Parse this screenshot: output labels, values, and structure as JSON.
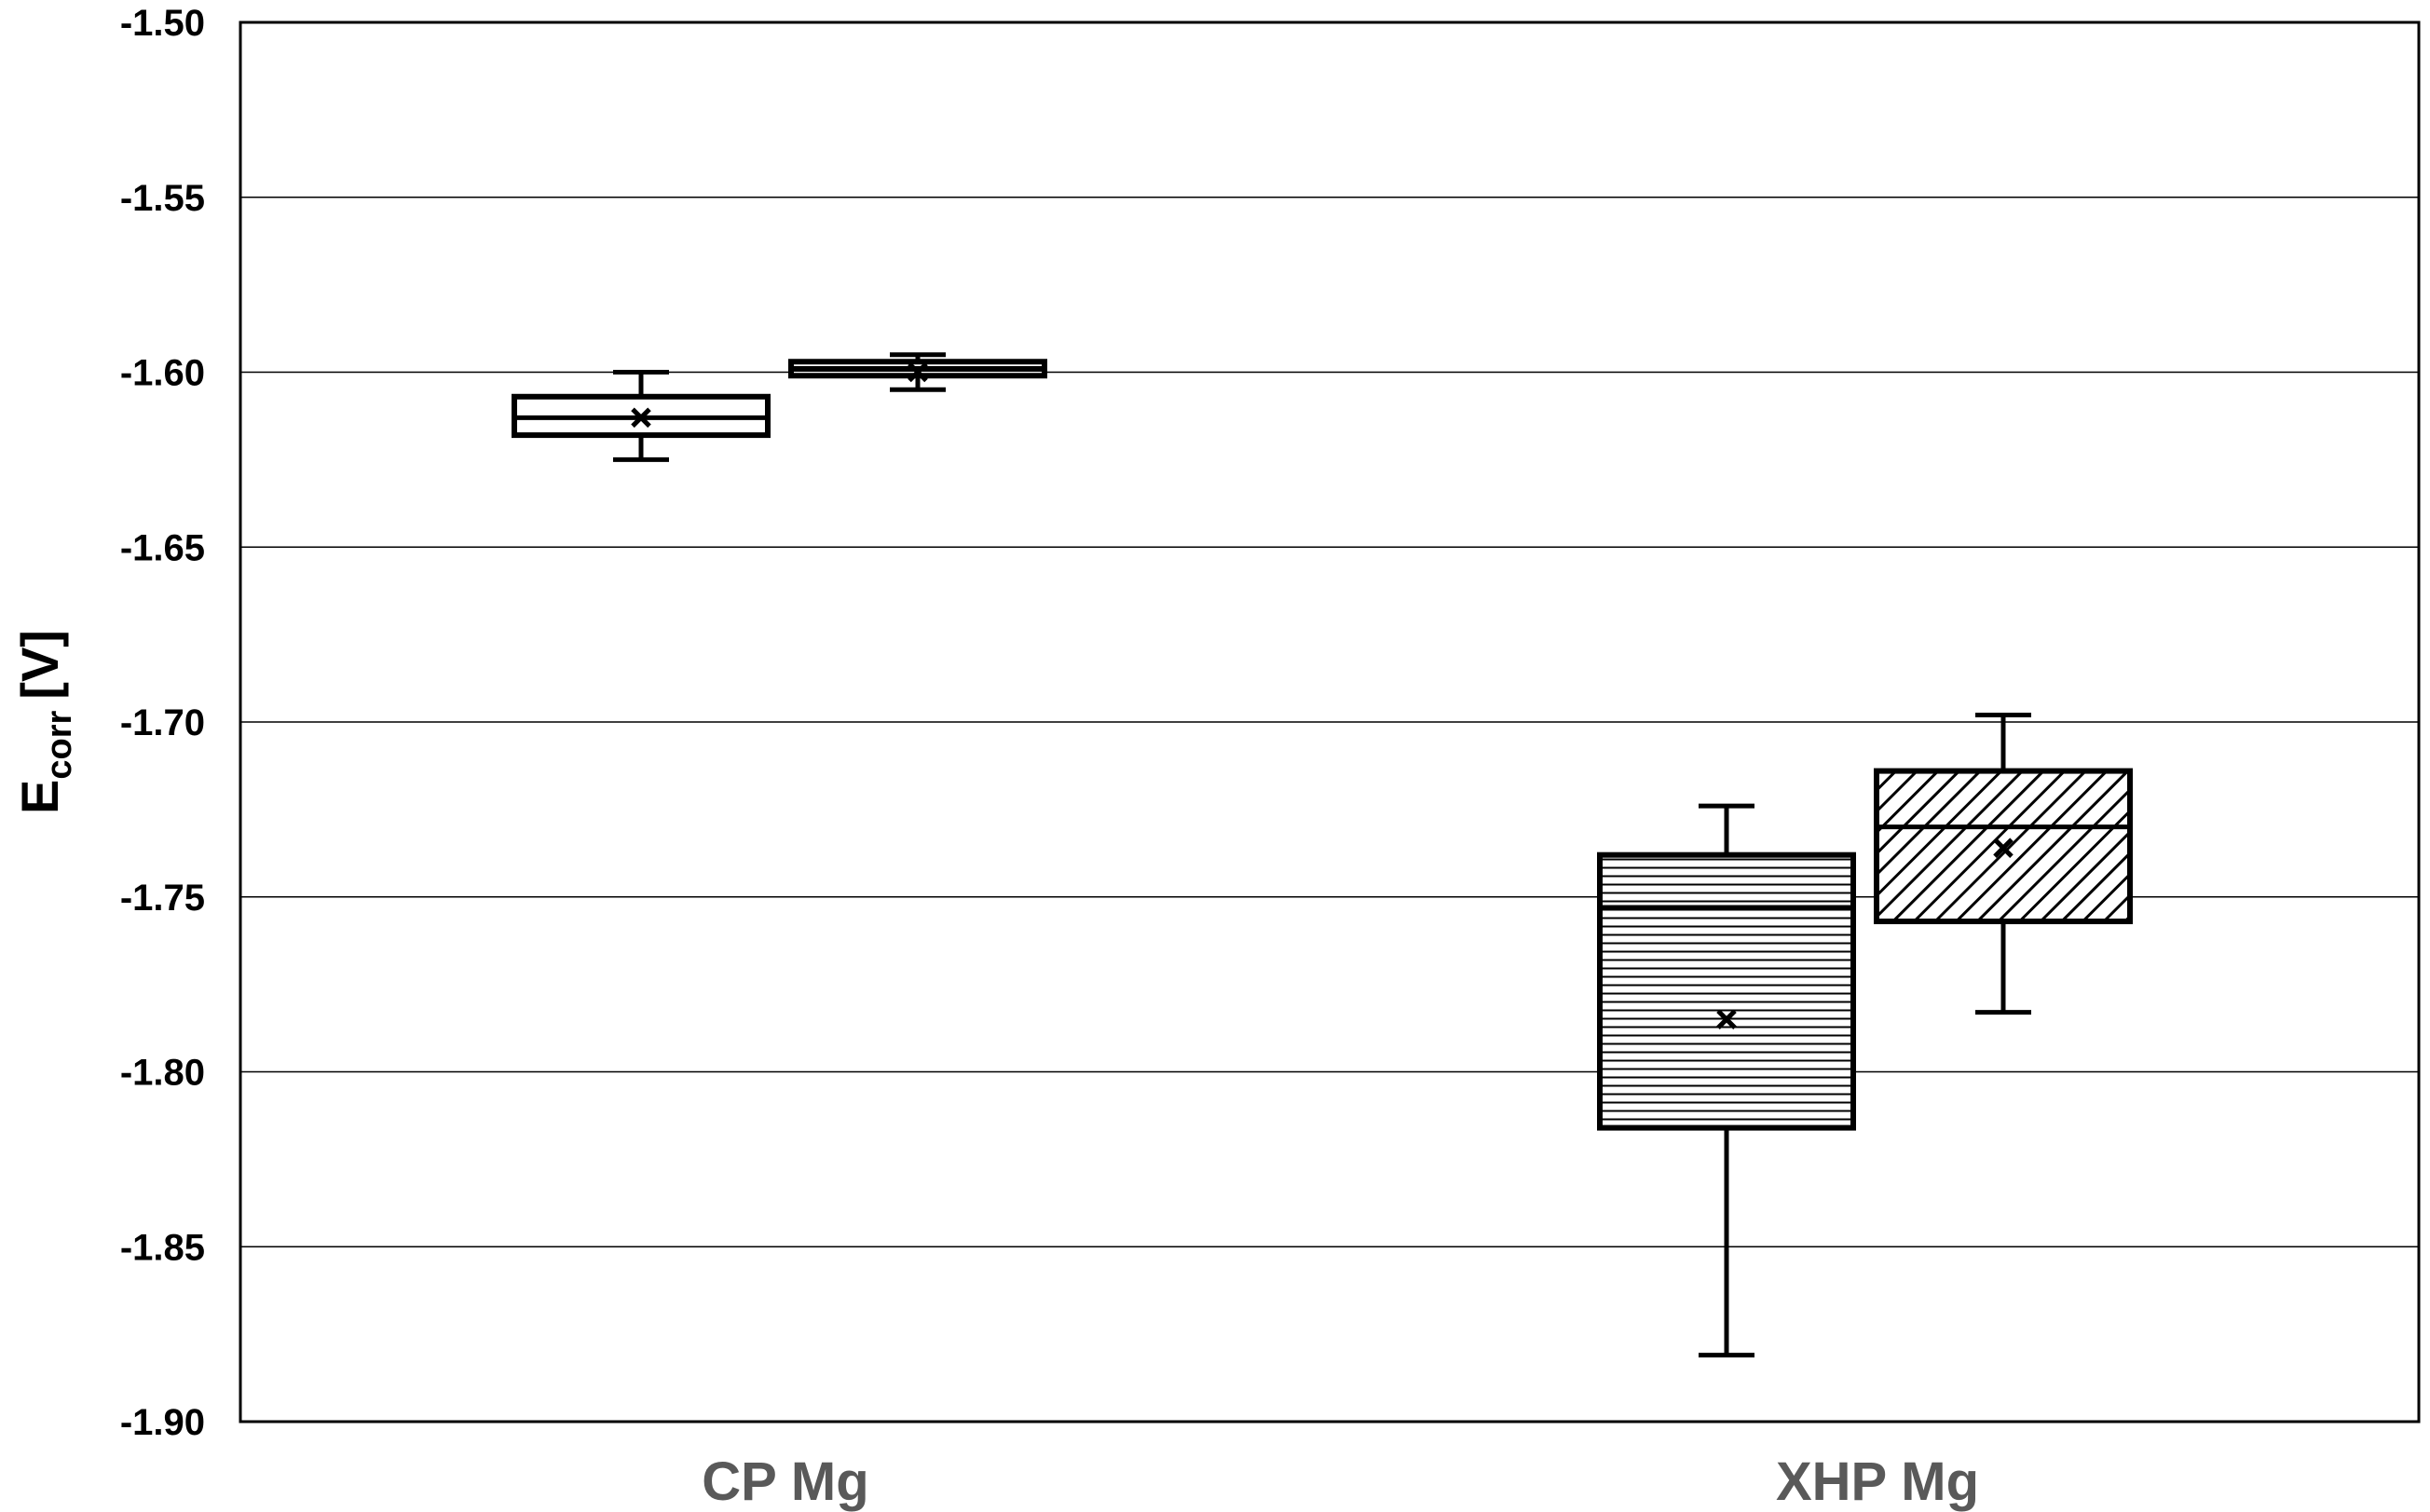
{
  "chart_data": {
    "type": "box",
    "ylabel": {
      "main": "E",
      "sub": "corr",
      "unit": "[V]"
    },
    "ylim": [
      -1.9,
      -1.5
    ],
    "y_ticks": [
      "-1.50",
      "-1.55",
      "-1.60",
      "-1.65",
      "-1.70",
      "-1.75",
      "-1.80",
      "-1.85",
      "-1.90"
    ],
    "categories": [
      "CP Mg",
      "XHP Mg"
    ],
    "grid": true,
    "legend": "none",
    "boxes": [
      {
        "category": 0,
        "slot": 0,
        "pattern": "none",
        "min": -1.625,
        "q1": -1.618,
        "median": -1.613,
        "q3": -1.607,
        "max": -1.6,
        "mean": -1.613
      },
      {
        "category": 0,
        "slot": 1,
        "pattern": "dense",
        "min": -1.605,
        "q1": -1.601,
        "median": -1.599,
        "q3": -1.597,
        "max": -1.595,
        "mean": -1.6
      },
      {
        "category": 1,
        "slot": 0,
        "pattern": "horizontal",
        "min": -1.881,
        "q1": -1.816,
        "median": -1.753,
        "q3": -1.738,
        "max": -1.724,
        "mean": -1.785
      },
      {
        "category": 1,
        "slot": 1,
        "pattern": "diagonal",
        "min": -1.783,
        "q1": -1.757,
        "median": -1.73,
        "q3": -1.714,
        "max": -1.698,
        "mean": -1.736
      }
    ]
  }
}
